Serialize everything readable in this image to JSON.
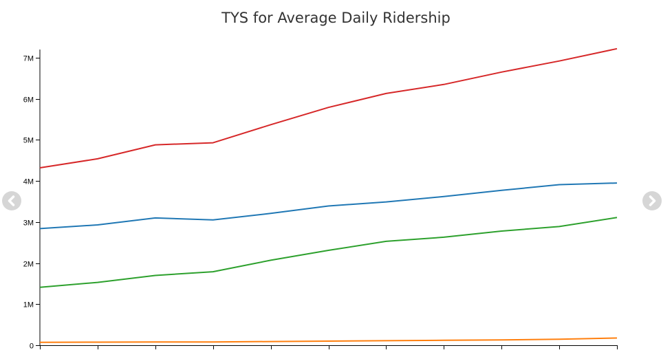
{
  "chart_data": {
    "type": "line",
    "title": "TYS for Average Daily Ridership",
    "xlabel": "",
    "ylabel": "",
    "ylim": [
      0,
      7200000
    ],
    "yticks": [
      {
        "value": 0,
        "label": "0"
      },
      {
        "value": 1000000,
        "label": "1M"
      },
      {
        "value": 2000000,
        "label": "2M"
      },
      {
        "value": 3000000,
        "label": "3M"
      },
      {
        "value": 4000000,
        "label": "4M"
      },
      {
        "value": 5000000,
        "label": "5M"
      },
      {
        "value": 6000000,
        "label": "6M"
      },
      {
        "value": 7000000,
        "label": "7M"
      }
    ],
    "x": [
      0,
      1,
      2,
      3,
      4,
      5,
      6,
      7,
      8,
      9,
      10
    ],
    "grid": false,
    "legend": "none",
    "series": [
      {
        "color": "#d62728",
        "values": [
          4320000,
          4540000,
          4880000,
          4930000,
          5370000,
          5790000,
          6130000,
          6350000,
          6650000,
          6920000,
          7220000
        ]
      },
      {
        "color": "#1f77b4",
        "values": [
          2840000,
          2930000,
          3100000,
          3050000,
          3210000,
          3390000,
          3490000,
          3620000,
          3770000,
          3910000,
          3950000
        ]
      },
      {
        "color": "#2ca02c",
        "values": [
          1410000,
          1530000,
          1700000,
          1790000,
          2070000,
          2310000,
          2530000,
          2630000,
          2780000,
          2890000,
          3110000
        ]
      },
      {
        "color": "#ff7f0e",
        "values": [
          70000,
          75000,
          80000,
          80000,
          90000,
          100000,
          110000,
          120000,
          130000,
          145000,
          175000
        ]
      }
    ]
  },
  "nav": {
    "prev_icon": "chevron-left-icon",
    "next_icon": "chevron-right-icon"
  }
}
